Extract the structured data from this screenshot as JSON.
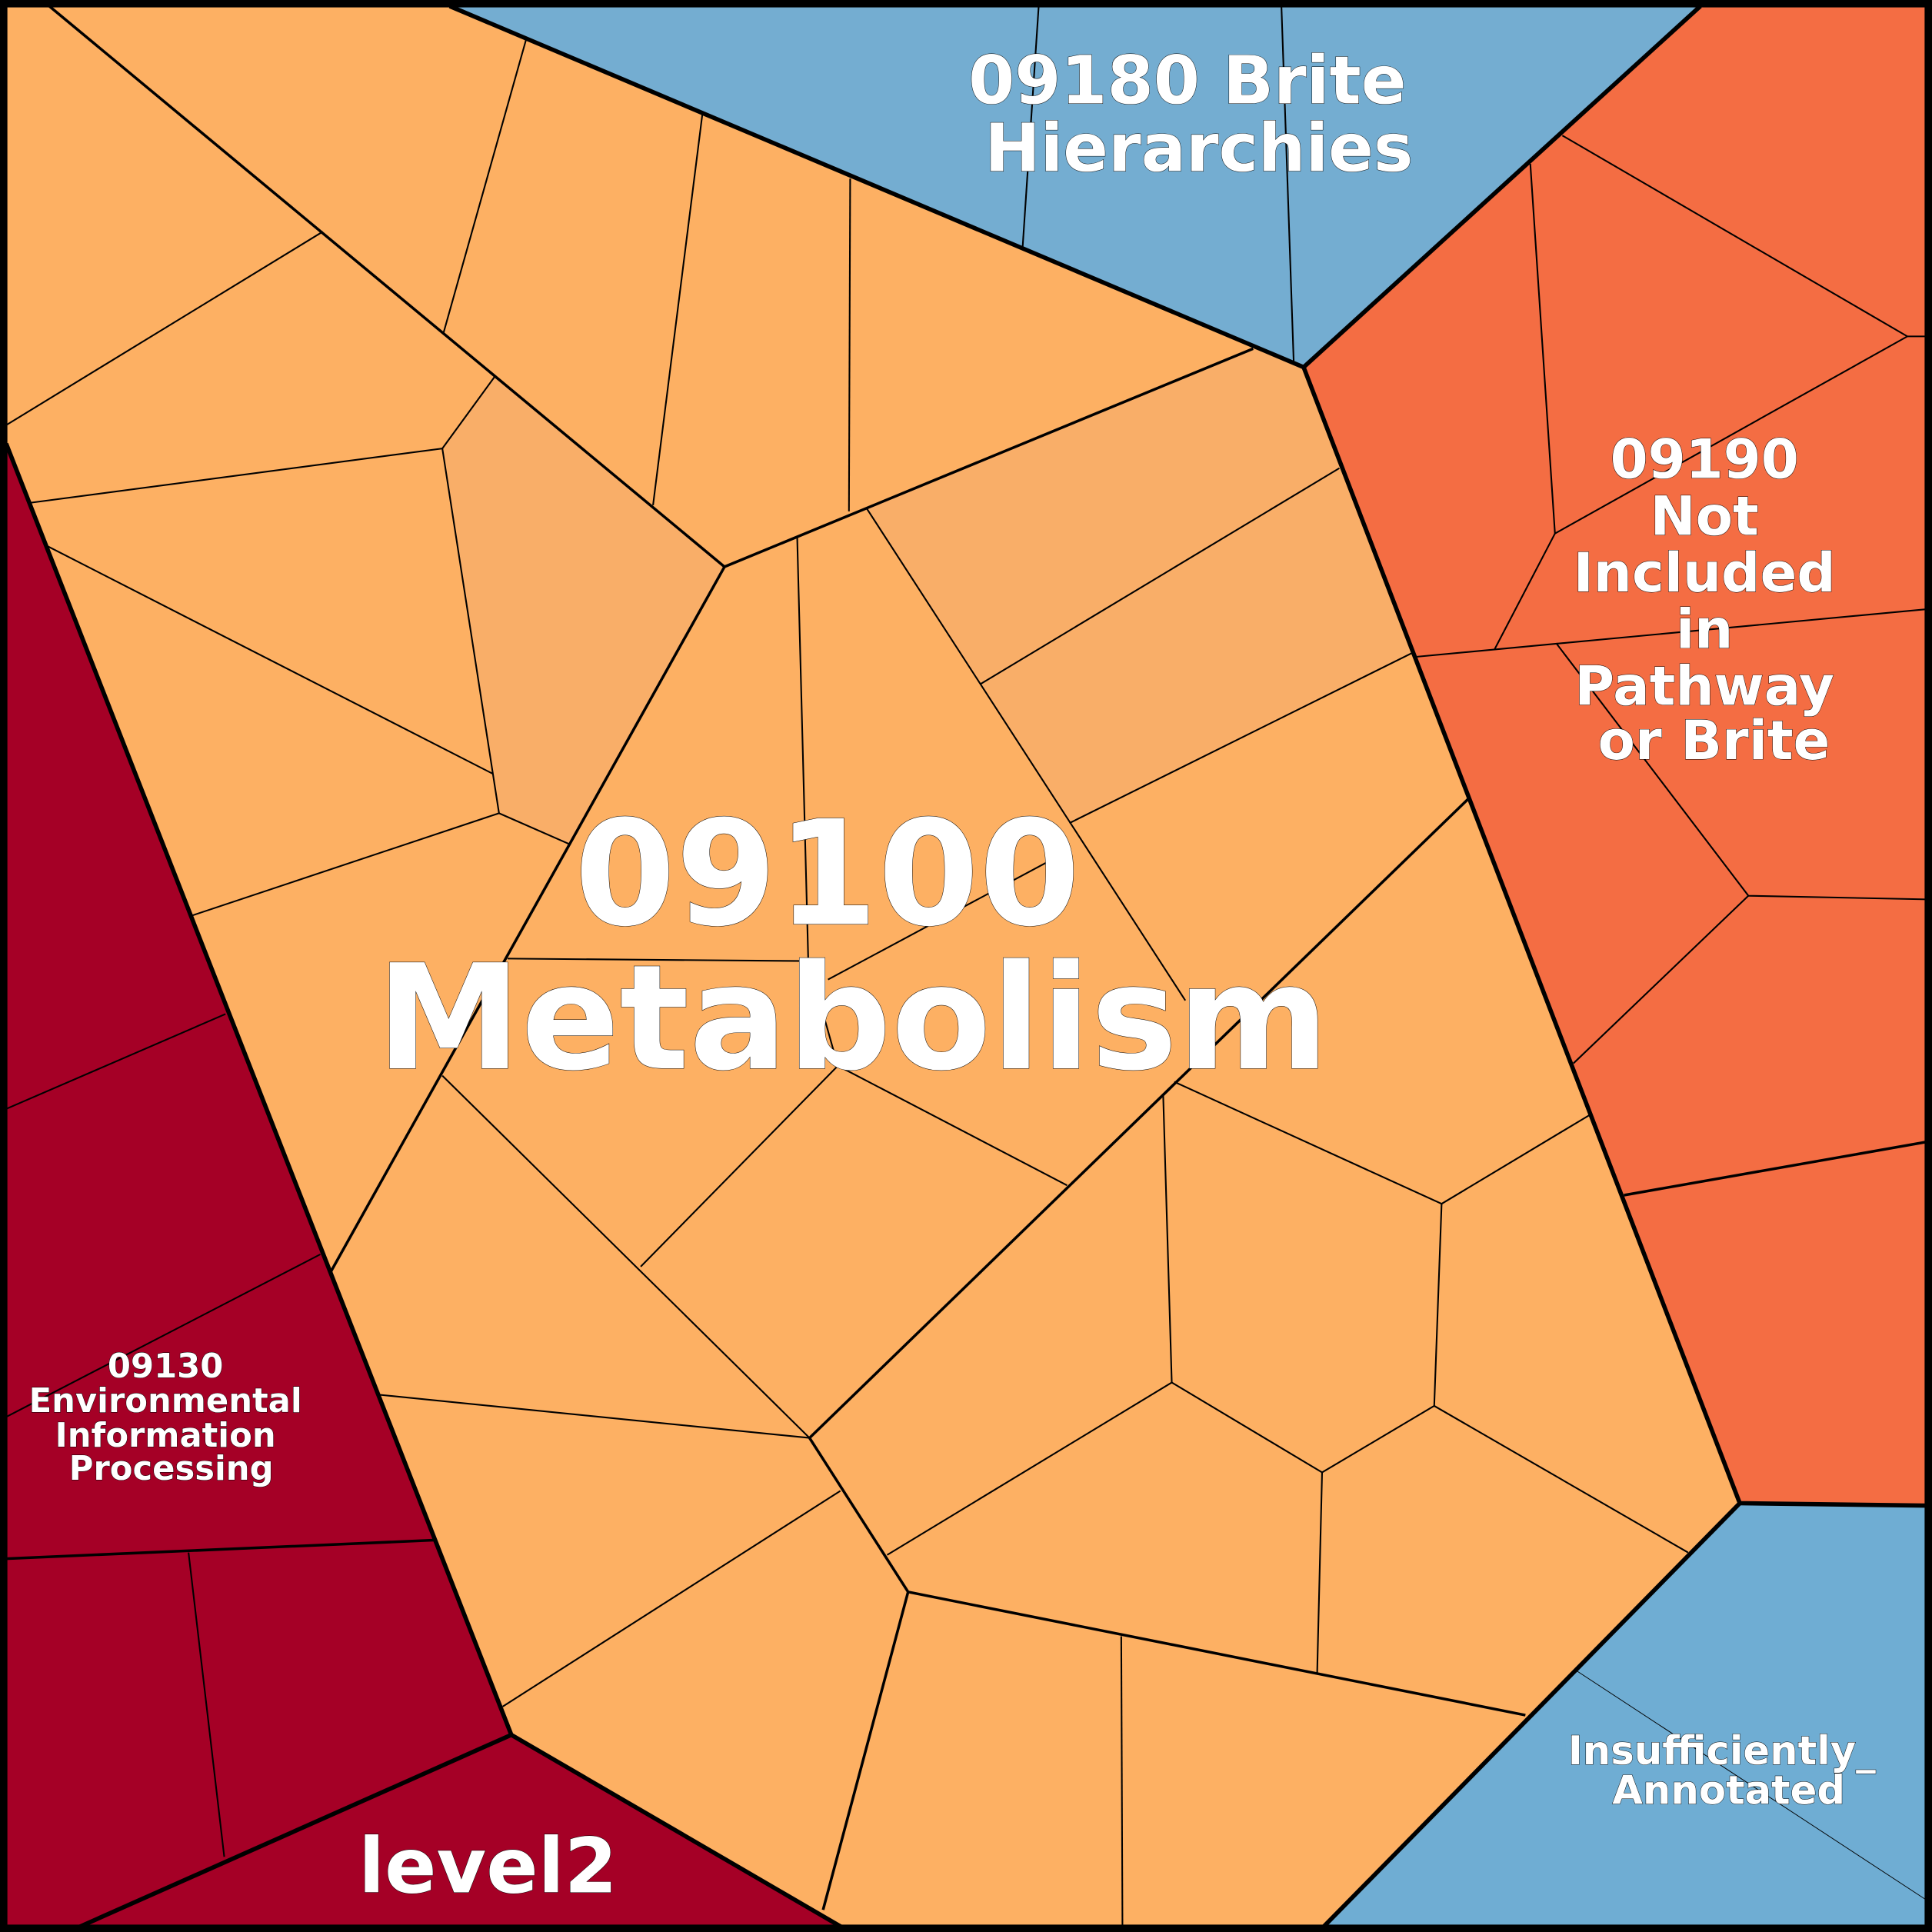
{
  "colors": {
    "metabolism": "#fdb063",
    "metabolism_alt": "#f9ae68",
    "not_included": "#f46d43",
    "environmental": "#a50026",
    "brite": "#74add1",
    "insufficient": "#6fadd3",
    "border": "#000000",
    "label": "#ffffff"
  },
  "labels": {
    "metabolism": [
      "09100",
      "Metabolism"
    ],
    "brite": [
      "09180 Brite",
      "Hierarchies"
    ],
    "not_included": [
      "09190",
      "Not",
      "Included",
      "in",
      "Pathway",
      "or Brite"
    ],
    "environmental": [
      "09130",
      "Environmental",
      "Information",
      "Processing"
    ],
    "insufficient": [
      "Insufficiently_",
      "Annotated"
    ],
    "root": "level2"
  }
}
